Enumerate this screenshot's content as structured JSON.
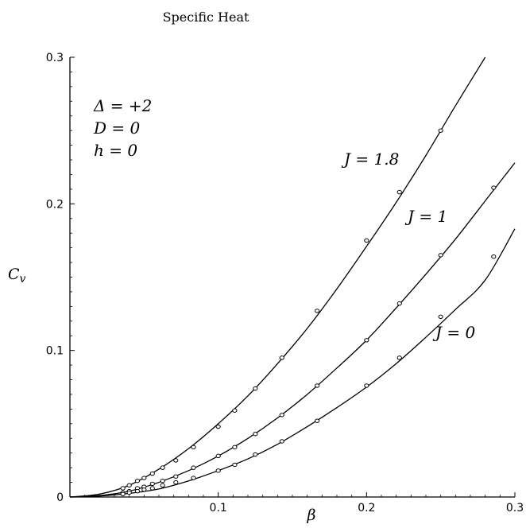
{
  "chart_data": {
    "type": "line",
    "title": "Specific Heat",
    "xlabel": "β",
    "ylabel": "C",
    "ylabel_sub": "v",
    "xlim": [
      0,
      0.3
    ],
    "ylim": [
      0,
      0.3
    ],
    "x_ticks": [
      {
        "value": 0.1,
        "label": "0.1"
      },
      {
        "value": 0.2,
        "label": "0.2"
      },
      {
        "value": 0.3,
        "label": "0.3"
      }
    ],
    "y_ticks": [
      {
        "value": 0,
        "label": "0"
      },
      {
        "value": 0.1,
        "label": "0.1"
      },
      {
        "value": 0.2,
        "label": "0.2"
      },
      {
        "value": 0.3,
        "label": "0.3"
      }
    ],
    "grid": false,
    "parameters": [
      "Δ = +2",
      "D = 0",
      "h = 0"
    ],
    "series": [
      {
        "name": "J = 1.8",
        "curve_x": [
          0,
          0.02,
          0.04,
          0.06,
          0.08,
          0.1,
          0.12,
          0.14,
          0.16,
          0.18,
          0.2,
          0.22,
          0.24,
          0.26,
          0.28,
          0.3
        ],
        "curve_y": [
          0,
          0.002,
          0.008,
          0.019,
          0.033,
          0.05,
          0.069,
          0.091,
          0.115,
          0.142,
          0.171,
          0.201,
          0.233,
          0.267,
          0.3,
          0.3
        ],
        "points_x": [
          0.0357,
          0.04,
          0.0455,
          0.05,
          0.0556,
          0.0625,
          0.0714,
          0.0833,
          0.1,
          0.1111,
          0.125,
          0.1429,
          0.1667,
          0.2,
          0.2222,
          0.25
        ],
        "points_y": [
          0.006,
          0.008,
          0.011,
          0.013,
          0.016,
          0.02,
          0.025,
          0.034,
          0.048,
          0.059,
          0.074,
          0.095,
          0.127,
          0.175,
          0.208,
          0.25
        ]
      },
      {
        "name": "J = 1",
        "curve_x": [
          0,
          0.02,
          0.04,
          0.06,
          0.08,
          0.1,
          0.12,
          0.14,
          0.16,
          0.18,
          0.2,
          0.22,
          0.24,
          0.26,
          0.28,
          0.3
        ],
        "curve_y": [
          0,
          0.001,
          0.004,
          0.01,
          0.018,
          0.028,
          0.04,
          0.054,
          0.07,
          0.088,
          0.107,
          0.129,
          0.152,
          0.176,
          0.202,
          0.228
        ],
        "points_x": [
          0.0357,
          0.04,
          0.0455,
          0.05,
          0.0556,
          0.0625,
          0.0714,
          0.0833,
          0.1,
          0.1111,
          0.125,
          0.1429,
          0.1667,
          0.2,
          0.2222,
          0.25,
          0.2857
        ],
        "points_y": [
          0.003,
          0.004,
          0.006,
          0.007,
          0.009,
          0.011,
          0.014,
          0.02,
          0.028,
          0.034,
          0.043,
          0.056,
          0.076,
          0.107,
          0.132,
          0.165,
          0.211
        ]
      },
      {
        "name": "J = 0",
        "curve_x": [
          0,
          0.02,
          0.04,
          0.06,
          0.08,
          0.1,
          0.12,
          0.14,
          0.16,
          0.18,
          0.2,
          0.22,
          0.24,
          0.26,
          0.28,
          0.3
        ],
        "curve_y": [
          0,
          0.0007,
          0.0025,
          0.0055,
          0.011,
          0.018,
          0.026,
          0.036,
          0.048,
          0.061,
          0.075,
          0.091,
          0.109,
          0.128,
          0.148,
          0.183
        ],
        "points_x": [
          0.0357,
          0.04,
          0.0455,
          0.05,
          0.0556,
          0.0625,
          0.0714,
          0.0833,
          0.1,
          0.1111,
          0.125,
          0.1429,
          0.1667,
          0.2,
          0.2222,
          0.25,
          0.2857
        ],
        "points_y": [
          0.002,
          0.003,
          0.004,
          0.005,
          0.006,
          0.008,
          0.01,
          0.013,
          0.018,
          0.022,
          0.029,
          0.038,
          0.052,
          0.076,
          0.095,
          0.123,
          0.164
        ]
      }
    ]
  }
}
